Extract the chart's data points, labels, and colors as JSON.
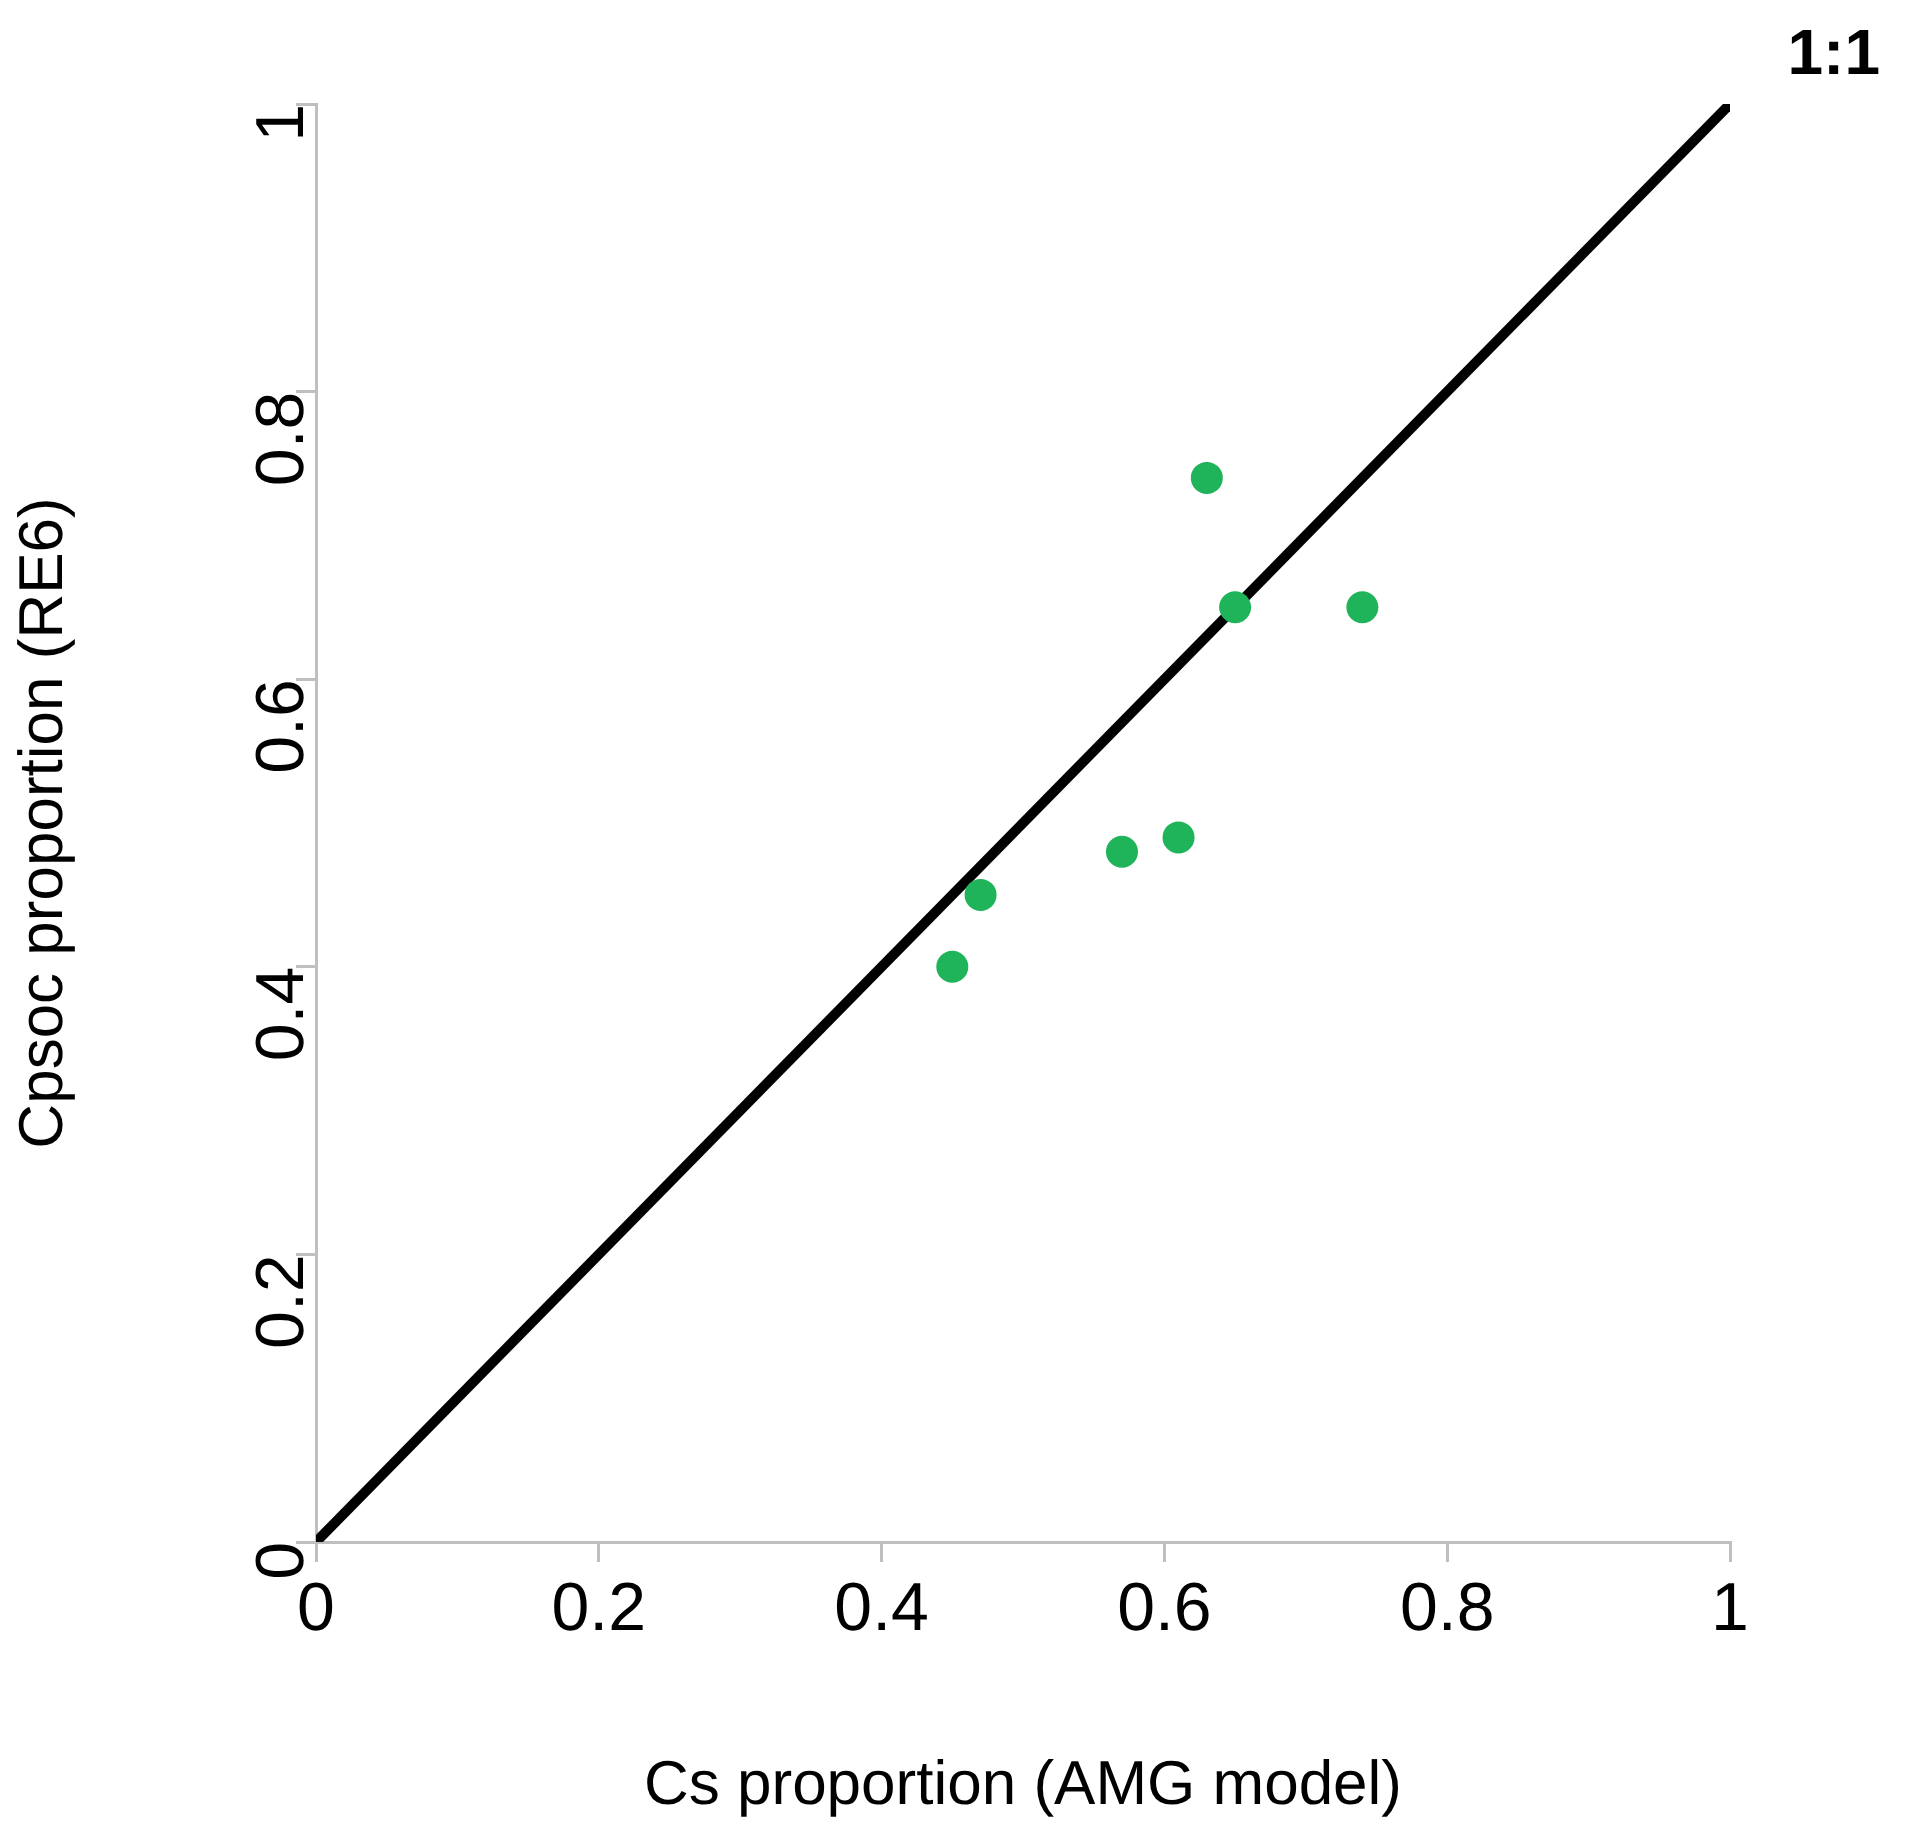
{
  "chart_data": {
    "type": "scatter",
    "xlabel": "Cs proportion (AMG model)",
    "ylabel": "Cpsoc proportion (RE6)",
    "x": [
      0.45,
      0.47,
      0.57,
      0.61,
      0.63,
      0.65,
      0.74
    ],
    "series": [
      {
        "color": "#1fb45a",
        "marker": "circle",
        "values": [
          0.4,
          0.45,
          0.48,
          0.49,
          0.74,
          0.65,
          0.65
        ]
      },
      {
        "type": "line",
        "name": "1:1",
        "color": "#000000",
        "marker": "none",
        "x": [
          0,
          1
        ],
        "values": [
          0,
          1
        ]
      }
    ],
    "xlim": [
      0,
      1
    ],
    "ylim": [
      0,
      1
    ],
    "xticks": [
      0,
      0.2,
      0.4,
      0.6,
      0.8,
      1
    ],
    "yticks": [
      0,
      0.2,
      0.4,
      0.6,
      0.8,
      1
    ],
    "grid": false,
    "legend": false
  }
}
